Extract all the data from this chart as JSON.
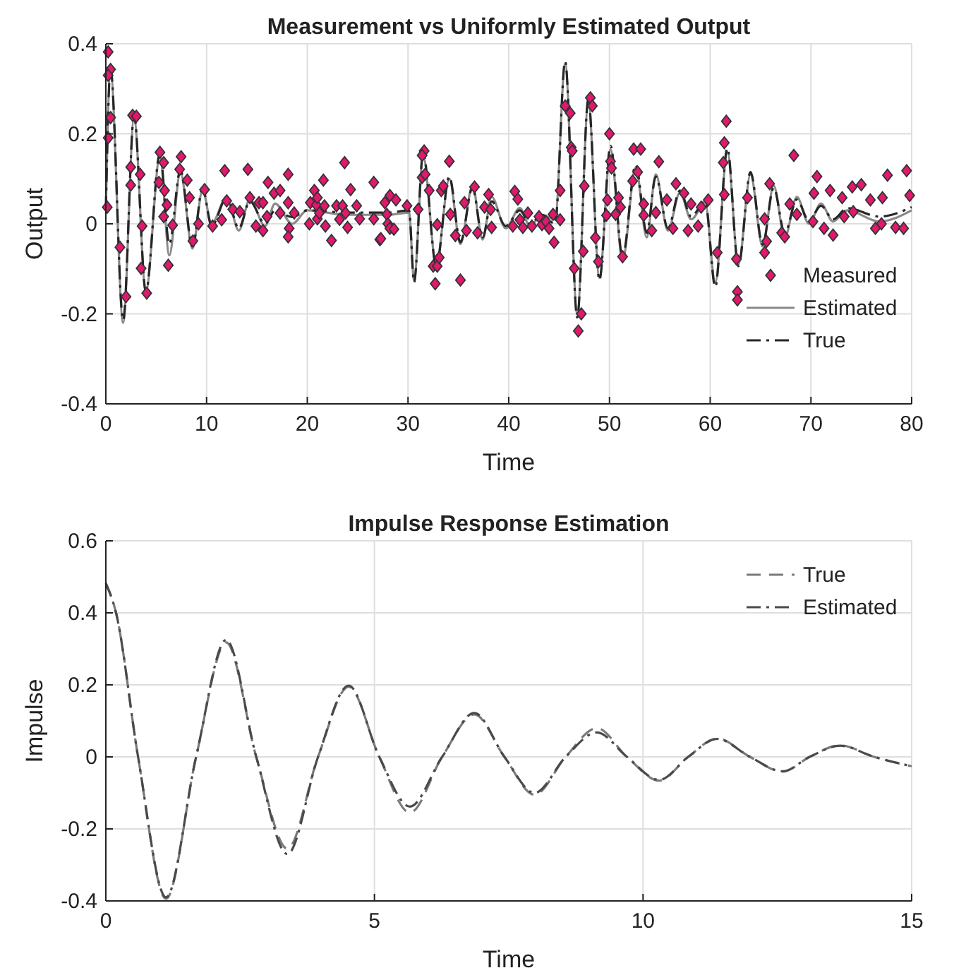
{
  "chart_data": [
    {
      "type": "line",
      "title": "Measurement vs Uniformly Estimated Output",
      "xlabel": "Time",
      "ylabel": "Output",
      "xlim": [
        0,
        80
      ],
      "ylim": [
        -0.4,
        0.4
      ],
      "xticks": [
        0,
        10,
        20,
        30,
        40,
        50,
        60,
        70,
        80
      ],
      "yticks": [
        -0.4,
        -0.2,
        0,
        0.2,
        0.4
      ],
      "grid": true,
      "legend": "bottom right",
      "series": [
        {
          "name": "Measured",
          "type": "scatter",
          "marker": "diamond",
          "color": "#e0196e",
          "x": [
            0.23,
            0.47,
            0.23,
            0.47,
            0.23,
            0.14,
            1.4,
            2.0,
            2.66,
            3.03,
            2.47,
            2.47,
            3.41,
            3.6,
            3.5,
            4.06,
            5.37,
            5.74,
            5.27,
            5.83,
            5.74,
            6.07,
            6.2,
            6.63,
            7.47,
            7.33,
            8.08,
            8.31,
            8.64,
            9.2,
            9.8,
            10.6,
            11.5,
            11.8,
            12.0,
            12.6,
            13.3,
            14.1,
            14.3,
            14.9,
            15.2,
            15.6,
            15.6,
            16.1,
            16.0,
            16.7,
            17.3,
            17.3,
            18.1,
            18.1,
            18.2,
            18.1,
            18.7,
            20.2,
            20.3,
            20.7,
            20.9,
            21.0,
            21.0,
            21.2,
            21.6,
            21.7,
            21.8,
            22.4,
            22.9,
            23.2,
            23.5,
            23.7,
            23.8,
            24.0,
            24.3,
            24.9,
            25.2,
            26.6,
            26.6,
            27.2,
            27.7,
            27.9,
            28.2,
            28.0,
            28.2,
            28.6,
            27.3,
            28.8,
            29.9,
            31.0,
            31.4,
            31.6,
            31.4,
            31.7,
            32.1,
            32.9,
            32.5,
            32.9,
            33.1,
            32.7,
            33.3,
            33.5,
            34.1,
            34.2,
            34.7,
            35.2,
            35.6,
            35.8,
            36.6,
            36.9,
            37.6,
            38.0,
            38.2,
            38.3,
            40.4,
            40.6,
            40.9,
            41.1,
            41.4,
            41.9,
            42.3,
            43.0,
            43.3,
            43.7,
            44.0,
            44.4,
            44.5,
            45.1,
            45.1,
            45.6,
            46.1,
            46.2,
            46.3,
            46.5,
            47.2,
            46.9,
            47.4,
            47.5,
            48.1,
            48.3,
            48.6,
            48.9,
            49.7,
            49.8,
            50.0,
            50.1,
            50.2,
            50.6,
            50.9,
            51.1,
            51.3,
            52.3,
            52.4,
            53.1,
            52.8,
            53.4,
            53.4,
            54.2,
            54.6,
            54.9,
            55.7,
            56.3,
            56.6,
            57.4,
            57.8,
            58.1,
            58.8,
            59.1,
            59.8,
            60.7,
            61.4,
            61.3,
            61.4,
            61.6,
            62.6,
            62.7,
            62.7,
            63.7,
            65.4,
            65.6,
            65.4,
            65.9,
            67.1,
            67.4,
            67.9,
            68.3,
            68.6,
            70.2,
            70.3,
            70.6,
            71.3,
            71.9,
            72.2,
            73.1,
            73.3,
            74.1,
            74.2,
            75.0,
            75.9,
            76.4,
            77.0,
            77.1,
            77.6,
            78.4,
            79.2,
            79.5,
            79.8
          ],
          "values": [
            0.382,
            0.343,
            0.33,
            0.236,
            0.191,
            0.037,
            -0.052,
            -0.162,
            0.241,
            0.239,
            0.126,
            0.086,
            0.11,
            -0.005,
            -0.099,
            -0.154,
            0.159,
            0.136,
            0.092,
            0.074,
            0.016,
            0.042,
            -0.092,
            -0.003,
            0.149,
            0.121,
            0.097,
            0.058,
            -0.038,
            0.0,
            0.076,
            -0.005,
            0.009,
            0.118,
            0.051,
            0.032,
            0.027,
            0.121,
            0.058,
            -0.005,
            0.047,
            -0.015,
            0.047,
            0.092,
            0.016,
            0.068,
            0.074,
            0.024,
            0.11,
            0.047,
            -0.01,
            -0.029,
            0.024,
            0.0,
            0.047,
            0.074,
            0.042,
            0.058,
            0.011,
            0.024,
            0.097,
            0.04,
            -0.005,
            -0.037,
            0.04,
            0.01,
            0.04,
            0.136,
            0.024,
            -0.008,
            0.076,
            0.04,
            0.011,
            0.092,
            0.011,
            -0.035,
            0.047,
            0.021,
            0.063,
            0.0,
            -0.01,
            -0.012,
            -0.033,
            0.053,
            0.04,
            0.032,
            0.103,
            0.162,
            0.152,
            0.11,
            0.074,
            -0.002,
            -0.094,
            -0.094,
            -0.075,
            -0.133,
            0.074,
            0.084,
            0.139,
            0.021,
            -0.026,
            -0.125,
            0.047,
            -0.015,
            0.082,
            -0.02,
            0.037,
            0.065,
            0.032,
            -0.008,
            -0.005,
            0.072,
            0.055,
            0.009,
            -0.008,
            0.024,
            -0.005,
            0.016,
            -0.002,
            0.005,
            -0.01,
            0.021,
            -0.041,
            0.009,
            0.074,
            0.262,
            0.246,
            0.17,
            0.162,
            -0.099,
            -0.2,
            -0.238,
            -0.061,
            0.084,
            0.28,
            0.262,
            -0.031,
            -0.084,
            0.019,
            0.053,
            0.2,
            0.139,
            0.124,
            0.021,
            0.058,
            0.037,
            -0.073,
            0.095,
            0.166,
            0.166,
            0.115,
            0.044,
            0.019,
            -0.015,
            0.025,
            0.138,
            0.053,
            -0.01,
            0.089,
            0.068,
            -0.015,
            0.044,
            -0.005,
            0.037,
            0.053,
            -0.064,
            0.065,
            0.136,
            0.18,
            0.228,
            -0.078,
            -0.151,
            -0.169,
            0.058,
            0.011,
            -0.039,
            -0.064,
            0.089,
            -0.02,
            -0.029,
            0.044,
            0.152,
            0.021,
            0.005,
            0.068,
            0.105,
            -0.01,
            0.074,
            -0.025,
            0.058,
            0.016,
            0.082,
            0.027,
            0.087,
            0.053,
            -0.01,
            0.0,
            0.058,
            0.108,
            -0.008,
            -0.01,
            0.118,
            0.063
          ]
        },
        {
          "name": "Estimated",
          "line_style": "solid",
          "color": "#8a8a8a",
          "x": [
            0,
            0.46,
            1.72,
            2.8,
            3.97,
            5.37,
            6.3,
            7.4,
            8.6,
            9.6,
            10.5,
            12.0,
            13.2,
            14.3,
            15.8,
            16.8,
            18.5,
            20,
            24,
            28,
            30.1,
            30.6,
            31.5,
            32.8,
            34.1,
            35.2,
            36.4,
            37.4,
            38.3,
            39.7,
            41.1,
            42.1,
            43.3,
            44.6,
            45.6,
            46.8,
            47.9,
            49.0,
            50.1,
            51.3,
            52.6,
            53.7,
            54.6,
            55.8,
            57.0,
            58.1,
            59.5,
            60.5,
            61.7,
            62.8,
            64.0,
            65.2,
            66.3,
            67.4,
            68.6,
            69.8,
            71.0,
            72.2,
            73.6,
            76.8,
            80
          ],
          "values": [
            0.03,
            0.34,
            -0.22,
            0.235,
            -0.15,
            0.15,
            -0.07,
            0.115,
            -0.055,
            0.075,
            0.0,
            0.06,
            -0.015,
            0.055,
            -0.005,
            0.045,
            0.0,
            0.03,
            0.02,
            0.02,
            0.025,
            -0.125,
            0.15,
            -0.09,
            0.1,
            -0.045,
            0.085,
            -0.035,
            0.06,
            -0.01,
            0.035,
            -0.005,
            0.02,
            0.01,
            0.355,
            -0.2,
            0.27,
            -0.12,
            0.165,
            -0.08,
            0.125,
            -0.03,
            0.11,
            -0.015,
            0.07,
            0.01,
            0.045,
            -0.13,
            0.16,
            -0.09,
            0.11,
            -0.05,
            0.085,
            -0.03,
            0.06,
            0.0,
            0.045,
            0.005,
            0.03,
            0.005,
            0.03
          ]
        },
        {
          "name": "True",
          "line_style": "dashdot",
          "color": "#262626",
          "x": [
            0,
            0.46,
            1.72,
            2.8,
            3.97,
            5.37,
            6.3,
            7.4,
            8.6,
            9.6,
            10.5,
            12.0,
            13.2,
            14.3,
            15.8,
            16.8,
            18.5,
            20,
            24,
            28,
            30.1,
            30.6,
            31.5,
            32.8,
            34.1,
            35.2,
            36.4,
            37.4,
            38.3,
            39.7,
            41.1,
            42.1,
            43.3,
            44.6,
            45.6,
            46.8,
            47.9,
            49.0,
            50.1,
            51.3,
            52.6,
            53.7,
            54.6,
            55.8,
            57.0,
            58.1,
            59.5,
            60.5,
            61.7,
            62.8,
            64.0,
            65.2,
            66.3,
            67.4,
            68.6,
            69.8,
            71.0,
            72.2,
            73.6,
            76.8,
            80
          ],
          "values": [
            0.03,
            0.345,
            -0.214,
            0.24,
            -0.15,
            0.157,
            -0.045,
            0.12,
            -0.05,
            0.079,
            -0.005,
            0.058,
            -0.01,
            0.05,
            0.0,
            0.03,
            0.015,
            0.03,
            0.025,
            0.025,
            0.03,
            -0.13,
            0.157,
            -0.094,
            0.105,
            -0.041,
            0.08,
            -0.03,
            0.05,
            -0.005,
            0.03,
            0.0,
            0.02,
            0.0,
            0.361,
            -0.208,
            0.277,
            -0.125,
            0.173,
            -0.073,
            0.131,
            -0.02,
            0.105,
            -0.01,
            0.074,
            0.016,
            0.05,
            -0.14,
            0.168,
            -0.094,
            0.115,
            -0.046,
            0.08,
            -0.02,
            0.054,
            0.007,
            0.04,
            0.01,
            0.035,
            0.016,
            0.037
          ]
        }
      ]
    },
    {
      "type": "line",
      "title": "Impulse Response Estimation",
      "xlabel": "Time",
      "ylabel": "Impulse",
      "xlim": [
        0,
        15
      ],
      "ylim": [
        -0.4,
        0.6
      ],
      "xticks": [
        0,
        5,
        10,
        15
      ],
      "yticks": [
        -0.4,
        -0.2,
        0,
        0.2,
        0.4,
        0.6
      ],
      "grid": true,
      "legend": "top right",
      "series": [
        {
          "name": "True",
          "line_style": "dashed",
          "color": "#7a7a7a",
          "x": [
            0,
            0.19,
            0.6,
            1.12,
            1.68,
            2.24,
            2.8,
            3.38,
            3.95,
            4.52,
            5.09,
            5.66,
            6.26,
            6.86,
            7.42,
            7.98,
            8.56,
            9.14,
            9.7,
            10.3,
            10.84,
            11.38,
            11.99,
            12.6,
            13.1,
            13.67,
            14.3,
            15
          ],
          "values": [
            0.482,
            0.4,
            0.0,
            -0.394,
            0.0,
            0.318,
            0.0,
            -0.255,
            0.0,
            0.195,
            0.0,
            -0.155,
            0.0,
            0.118,
            0.0,
            -0.105,
            0.0,
            0.08,
            0.0,
            -0.066,
            0.0,
            0.051,
            0.0,
            -0.041,
            0.0,
            0.032,
            0.0,
            -0.026
          ]
        },
        {
          "name": "Estimated",
          "line_style": "dashdot",
          "color": "#4a4a4a",
          "x": [
            0,
            0.19,
            0.6,
            1.12,
            1.68,
            2.24,
            2.8,
            3.38,
            3.95,
            4.52,
            5.09,
            5.66,
            6.26,
            6.86,
            7.42,
            7.98,
            8.56,
            9.14,
            9.7,
            10.3,
            10.84,
            11.38,
            11.99,
            12.6,
            13.1,
            13.67,
            14.3,
            15
          ],
          "values": [
            0.482,
            0.4,
            0.0,
            -0.39,
            0.0,
            0.325,
            0.0,
            -0.27,
            0.0,
            0.198,
            0.0,
            -0.138,
            0.0,
            0.122,
            0.0,
            -0.1,
            0.0,
            0.068,
            0.0,
            -0.064,
            0.0,
            0.05,
            0.0,
            -0.04,
            0.0,
            0.031,
            0.0,
            -0.026
          ]
        }
      ]
    }
  ]
}
